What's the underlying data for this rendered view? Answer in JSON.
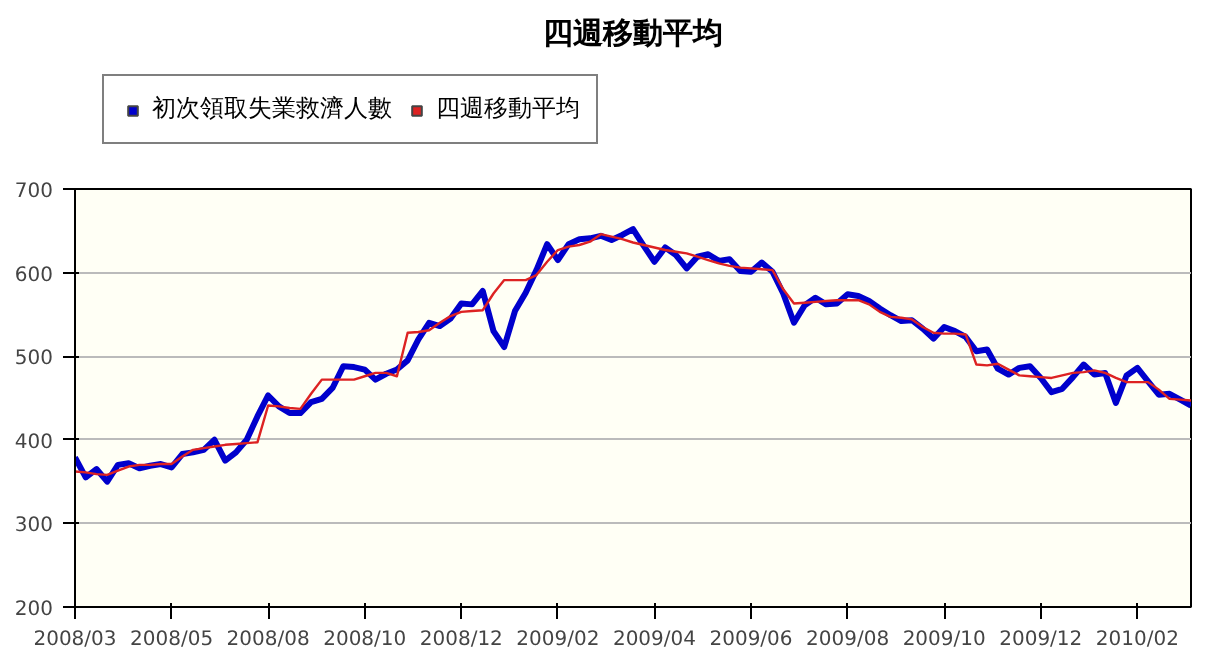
{
  "chart_data": {
    "type": "line",
    "title": "四週移動平均",
    "ylim": [
      200,
      700
    ],
    "categories": [
      "2008/03",
      null,
      null,
      null,
      null,
      null,
      null,
      null,
      null,
      "2008/05",
      null,
      null,
      null,
      null,
      null,
      null,
      null,
      null,
      "2008/08",
      null,
      null,
      null,
      null,
      null,
      null,
      null,
      null,
      "2008/10",
      null,
      null,
      null,
      null,
      null,
      null,
      null,
      null,
      "2008/12",
      null,
      null,
      null,
      null,
      null,
      null,
      null,
      null,
      "2009/02",
      null,
      null,
      null,
      null,
      null,
      null,
      null,
      null,
      "2009/04",
      null,
      null,
      null,
      null,
      null,
      null,
      null,
      null,
      "2009/06",
      null,
      null,
      null,
      null,
      null,
      null,
      null,
      null,
      "2009/08",
      null,
      null,
      null,
      null,
      null,
      null,
      null,
      null,
      "2009/10",
      null,
      null,
      null,
      null,
      null,
      null,
      null,
      null,
      "2009/12",
      null,
      null,
      null,
      null,
      null,
      null,
      null,
      null,
      "2010/02",
      null,
      null,
      null,
      null,
      null
    ],
    "yticks": [
      200,
      300,
      400,
      500,
      600,
      700
    ],
    "grid": "y",
    "legend": "top",
    "marker": "none",
    "line_style": "solid",
    "series": [
      {
        "name": "初次領取失業救濟人數",
        "color": "#0000cc",
        "values": [
          379,
          355,
          365,
          350,
          370,
          372,
          366,
          369,
          371,
          367,
          383,
          385,
          388,
          400,
          375,
          385,
          400,
          428,
          453,
          440,
          432,
          432,
          445,
          449,
          462,
          488,
          487,
          484,
          472,
          479,
          484,
          495,
          520,
          540,
          536,
          545,
          563,
          562,
          578,
          530,
          511,
          554,
          576,
          603,
          634,
          615,
          634,
          640,
          641,
          644,
          639,
          645,
          652,
          632,
          613,
          630,
          621,
          605,
          619,
          622,
          614,
          616,
          602,
          601,
          612,
          601,
          575,
          540,
          561,
          570,
          562,
          563,
          574,
          572,
          566,
          557,
          549,
          542,
          543,
          533,
          521,
          535,
          530,
          523,
          506,
          508,
          485,
          478,
          486,
          488,
          474,
          457,
          461,
          475,
          490,
          478,
          480,
          444,
          477,
          486,
          470,
          454,
          455,
          448,
          441
        ]
      },
      {
        "name": "四週移動平均",
        "color": "#dd2222",
        "values": [
          362,
          361,
          359,
          358,
          363,
          368,
          370,
          370,
          371,
          371,
          380,
          388,
          390,
          392,
          394,
          395,
          396,
          397,
          441,
          440,
          438,
          437,
          455,
          472,
          472,
          472,
          472,
          476,
          480,
          480,
          476,
          528,
          529,
          531,
          540,
          548,
          553,
          554,
          555,
          575,
          591,
          591,
          591,
          597,
          613,
          627,
          631,
          633,
          637,
          646,
          643,
          640,
          636,
          633,
          630,
          627,
          625,
          623,
          619,
          615,
          611,
          608,
          606,
          605,
          604,
          603,
          580,
          563,
          564,
          565,
          566,
          567,
          567,
          567,
          562,
          553,
          547,
          546,
          544,
          535,
          528,
          527,
          527,
          526,
          490,
          489,
          491,
          484,
          477,
          476,
          475,
          474,
          477,
          480,
          481,
          483,
          480,
          474,
          469,
          469,
          469,
          460,
          449,
          448,
          447
        ]
      }
    ]
  }
}
